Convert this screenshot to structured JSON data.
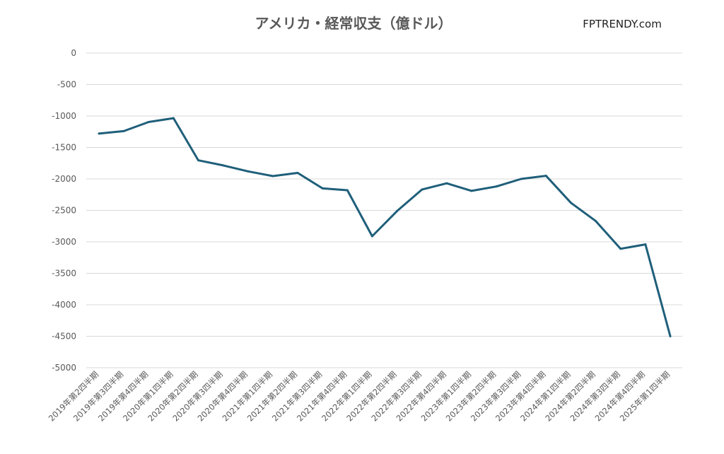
{
  "chart_data": {
    "type": "line",
    "title": "アメリカ・経常収支（億ドル）",
    "brand": "FPTRENDY.com",
    "xlabel": "",
    "ylabel": "",
    "ylim": [
      -5000,
      0
    ],
    "yticks": [
      0,
      -500,
      -1000,
      -1500,
      -2000,
      -2500,
      -3000,
      -3500,
      -4000,
      -4500,
      -5000
    ],
    "grid": true,
    "legend": "none",
    "line_color": "#1f5f7a",
    "categories": [
      "2019年第2四半期",
      "2019年第3四半期",
      "2019年第4四半期",
      "2020年第1四半期",
      "2020年第2四半期",
      "2020年第3四半期",
      "2020年第4四半期",
      "2021年第1四半期",
      "2021年第2四半期",
      "2021年第3四半期",
      "2021年第4四半期",
      "2022年第1四半期",
      "2022年第2四半期",
      "2022年第3四半期",
      "2022年第4四半期",
      "2023年第1四半期",
      "2023年第2四半期",
      "2023年第3四半期",
      "2023年第4四半期",
      "2024年第1四半期",
      "2024年第2四半期",
      "2024年第3四半期",
      "2024年第4四半期",
      "2025年第1四半期"
    ],
    "series": [
      {
        "values": [
          -1280,
          -1240,
          -1095,
          -1035,
          -1705,
          -1785,
          -1880,
          -1955,
          -1905,
          -2150,
          -2180,
          -2910,
          -2510,
          -2170,
          -2070,
          -2190,
          -2120,
          -2000,
          -1950,
          -2380,
          -2670,
          -3110,
          -3040,
          -4500
        ]
      }
    ]
  }
}
